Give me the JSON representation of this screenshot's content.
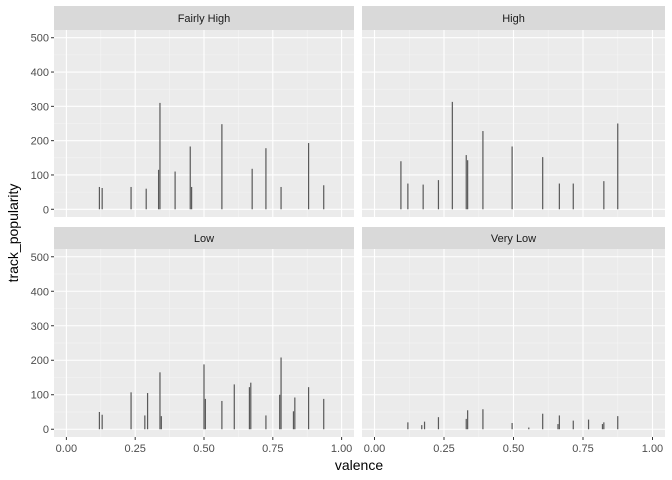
{
  "chart_data": {
    "type": "bar",
    "layout": "facet_wrap 2x2",
    "xlabel": "valence",
    "ylabel": "track_popularity",
    "xlim": [
      0.0,
      1.0
    ],
    "ylim": [
      0,
      500
    ],
    "xticks": [
      0.0,
      0.25,
      0.5,
      0.75,
      1.0
    ],
    "xtick_labels": [
      "0.00",
      "0.25",
      "0.50",
      "0.75",
      "1.00"
    ],
    "yticks": [
      0,
      100,
      200,
      300,
      400,
      500
    ],
    "ytick_labels": [
      "0",
      "100",
      "200",
      "300",
      "400",
      "500"
    ],
    "grid": true,
    "bar_color": "#595959",
    "panel_bg": "#ebebeb",
    "strip_bg": "#d9d9d9",
    "panels": [
      {
        "label": "Fairly High",
        "bars": [
          {
            "x": 0.12,
            "y": 65
          },
          {
            "x": 0.13,
            "y": 62
          },
          {
            "x": 0.235,
            "y": 65
          },
          {
            "x": 0.29,
            "y": 60
          },
          {
            "x": 0.335,
            "y": 115
          },
          {
            "x": 0.34,
            "y": 310
          },
          {
            "x": 0.395,
            "y": 110
          },
          {
            "x": 0.45,
            "y": 183
          },
          {
            "x": 0.455,
            "y": 65
          },
          {
            "x": 0.565,
            "y": 248
          },
          {
            "x": 0.675,
            "y": 118
          },
          {
            "x": 0.725,
            "y": 178
          },
          {
            "x": 0.78,
            "y": 65
          },
          {
            "x": 0.88,
            "y": 193
          },
          {
            "x": 0.935,
            "y": 70
          }
        ]
      },
      {
        "label": "High",
        "bars": [
          {
            "x": 0.095,
            "y": 140
          },
          {
            "x": 0.12,
            "y": 75
          },
          {
            "x": 0.175,
            "y": 72
          },
          {
            "x": 0.23,
            "y": 85
          },
          {
            "x": 0.28,
            "y": 313
          },
          {
            "x": 0.33,
            "y": 158
          },
          {
            "x": 0.335,
            "y": 143
          },
          {
            "x": 0.39,
            "y": 228
          },
          {
            "x": 0.495,
            "y": 183
          },
          {
            "x": 0.605,
            "y": 152
          },
          {
            "x": 0.665,
            "y": 75
          },
          {
            "x": 0.715,
            "y": 75
          },
          {
            "x": 0.825,
            "y": 82
          },
          {
            "x": 0.875,
            "y": 250
          }
        ]
      },
      {
        "label": "Low",
        "bars": [
          {
            "x": 0.12,
            "y": 50
          },
          {
            "x": 0.13,
            "y": 42
          },
          {
            "x": 0.235,
            "y": 107
          },
          {
            "x": 0.285,
            "y": 40
          },
          {
            "x": 0.295,
            "y": 105
          },
          {
            "x": 0.34,
            "y": 165
          },
          {
            "x": 0.345,
            "y": 38
          },
          {
            "x": 0.5,
            "y": 188
          },
          {
            "x": 0.505,
            "y": 88
          },
          {
            "x": 0.565,
            "y": 82
          },
          {
            "x": 0.61,
            "y": 130
          },
          {
            "x": 0.665,
            "y": 122
          },
          {
            "x": 0.67,
            "y": 135
          },
          {
            "x": 0.725,
            "y": 40
          },
          {
            "x": 0.775,
            "y": 100
          },
          {
            "x": 0.78,
            "y": 208
          },
          {
            "x": 0.825,
            "y": 52
          },
          {
            "x": 0.83,
            "y": 92
          },
          {
            "x": 0.88,
            "y": 122
          },
          {
            "x": 0.935,
            "y": 88
          }
        ]
      },
      {
        "label": "Very Low",
        "bars": [
          {
            "x": 0.12,
            "y": 20
          },
          {
            "x": 0.17,
            "y": 12
          },
          {
            "x": 0.18,
            "y": 22
          },
          {
            "x": 0.23,
            "y": 35
          },
          {
            "x": 0.33,
            "y": 30
          },
          {
            "x": 0.335,
            "y": 55
          },
          {
            "x": 0.39,
            "y": 58
          },
          {
            "x": 0.495,
            "y": 18
          },
          {
            "x": 0.555,
            "y": 5
          },
          {
            "x": 0.605,
            "y": 45
          },
          {
            "x": 0.66,
            "y": 15
          },
          {
            "x": 0.665,
            "y": 40
          },
          {
            "x": 0.715,
            "y": 25
          },
          {
            "x": 0.77,
            "y": 28
          },
          {
            "x": 0.82,
            "y": 15
          },
          {
            "x": 0.825,
            "y": 20
          },
          {
            "x": 0.875,
            "y": 38
          }
        ]
      }
    ]
  }
}
